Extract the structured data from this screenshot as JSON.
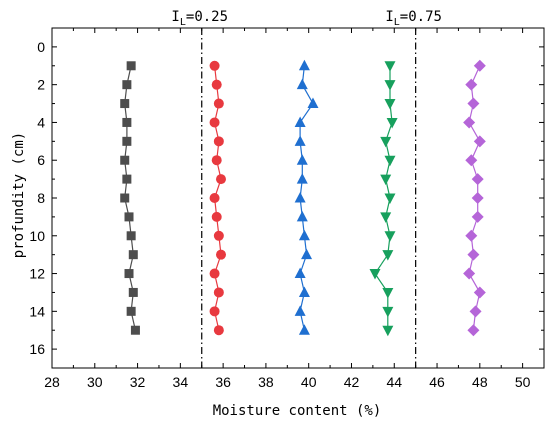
{
  "chart_data": {
    "type": "scatter",
    "xlabel": "Moisture content (%)",
    "ylabel": "profundity (cm)",
    "xlim": [
      28,
      51
    ],
    "ylim": [
      17,
      -1
    ],
    "x_ticks": [
      28,
      30,
      32,
      34,
      36,
      38,
      40,
      42,
      44,
      46,
      48,
      50
    ],
    "y_ticks": [
      0,
      2,
      4,
      6,
      8,
      10,
      12,
      14,
      16
    ],
    "y_inverted": true,
    "grid": false,
    "reference_lines": [
      {
        "x": 35.0,
        "label_base": "I",
        "label_sub": "L",
        "label_rest": "=0.25"
      },
      {
        "x": 45.0,
        "label_base": "I",
        "label_sub": "L",
        "label_rest": "=0.75"
      }
    ],
    "series": [
      {
        "marker": "square",
        "color": "#4d4d4d",
        "points": [
          [
            31.7,
            1
          ],
          [
            31.5,
            2
          ],
          [
            31.4,
            3
          ],
          [
            31.5,
            4
          ],
          [
            31.5,
            5
          ],
          [
            31.4,
            6
          ],
          [
            31.5,
            7
          ],
          [
            31.4,
            8
          ],
          [
            31.6,
            9
          ],
          [
            31.7,
            10
          ],
          [
            31.8,
            11
          ],
          [
            31.6,
            12
          ],
          [
            31.8,
            13
          ],
          [
            31.7,
            14
          ],
          [
            31.9,
            15
          ]
        ]
      },
      {
        "marker": "circle",
        "color": "#e8393f",
        "points": [
          [
            35.6,
            1
          ],
          [
            35.7,
            2
          ],
          [
            35.8,
            3
          ],
          [
            35.6,
            4
          ],
          [
            35.8,
            5
          ],
          [
            35.7,
            6
          ],
          [
            35.9,
            7
          ],
          [
            35.6,
            8
          ],
          [
            35.7,
            9
          ],
          [
            35.8,
            10
          ],
          [
            35.9,
            11
          ],
          [
            35.6,
            12
          ],
          [
            35.8,
            13
          ],
          [
            35.6,
            14
          ],
          [
            35.8,
            15
          ]
        ]
      },
      {
        "marker": "triangle-up",
        "color": "#1f6fd0",
        "points": [
          [
            39.8,
            1
          ],
          [
            39.7,
            2
          ],
          [
            40.2,
            3
          ],
          [
            39.6,
            4
          ],
          [
            39.6,
            5
          ],
          [
            39.7,
            6
          ],
          [
            39.7,
            7
          ],
          [
            39.6,
            8
          ],
          [
            39.7,
            9
          ],
          [
            39.8,
            10
          ],
          [
            39.9,
            11
          ],
          [
            39.6,
            12
          ],
          [
            39.8,
            13
          ],
          [
            39.6,
            14
          ],
          [
            39.8,
            15
          ]
        ]
      },
      {
        "marker": "triangle-down",
        "color": "#17a05d",
        "points": [
          [
            43.8,
            1
          ],
          [
            43.8,
            2
          ],
          [
            43.8,
            3
          ],
          [
            43.9,
            4
          ],
          [
            43.6,
            5
          ],
          [
            43.8,
            6
          ],
          [
            43.6,
            7
          ],
          [
            43.8,
            8
          ],
          [
            43.6,
            9
          ],
          [
            43.8,
            10
          ],
          [
            43.7,
            11
          ],
          [
            43.1,
            12
          ],
          [
            43.7,
            13
          ],
          [
            43.7,
            14
          ],
          [
            43.7,
            15
          ]
        ]
      },
      {
        "marker": "diamond",
        "color": "#b565d8",
        "points": [
          [
            48.0,
            1
          ],
          [
            47.6,
            2
          ],
          [
            47.7,
            3
          ],
          [
            47.5,
            4
          ],
          [
            48.0,
            5
          ],
          [
            47.6,
            6
          ],
          [
            47.9,
            7
          ],
          [
            47.9,
            8
          ],
          [
            47.9,
            9
          ],
          [
            47.6,
            10
          ],
          [
            47.7,
            11
          ],
          [
            47.5,
            12
          ],
          [
            48.0,
            13
          ],
          [
            47.8,
            14
          ],
          [
            47.7,
            15
          ]
        ]
      }
    ]
  }
}
